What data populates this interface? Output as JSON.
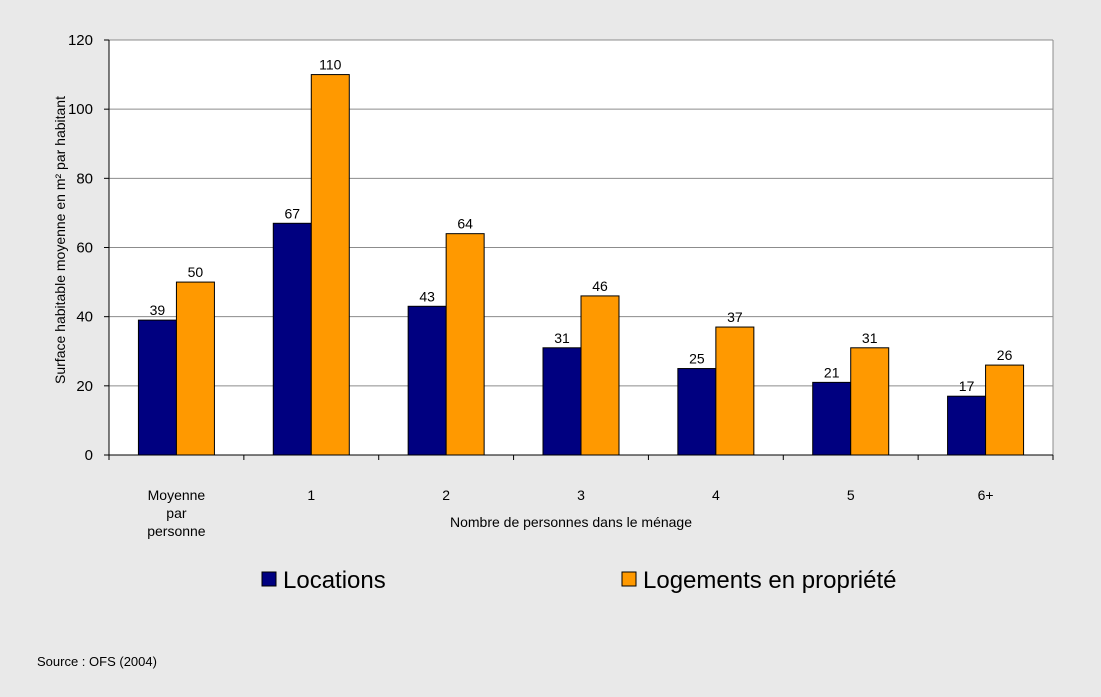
{
  "chart_data": {
    "type": "bar",
    "categories": [
      [
        "Moyenne",
        "par",
        "personne"
      ],
      [
        "1"
      ],
      [
        "2"
      ],
      [
        "3"
      ],
      [
        "4"
      ],
      [
        "5"
      ],
      [
        "6+"
      ]
    ],
    "series": [
      {
        "name": "Locations",
        "values": [
          39,
          67,
          43,
          31,
          25,
          21,
          17
        ],
        "color": "#000080"
      },
      {
        "name": "Logements en propriété",
        "values": [
          50,
          110,
          64,
          46,
          37,
          31,
          26
        ],
        "color": "#ff9900"
      }
    ],
    "xlabel": "Nombre de personnes dans le ménage",
    "ylabel": "Surface habitable moyenne en m² par habitant",
    "ylim": [
      0,
      120
    ],
    "yticks": [
      0,
      20,
      40,
      60,
      80,
      100,
      120
    ],
    "grid": true,
    "legend": "bottom",
    "data_labels": true
  },
  "source": "Source : OFS (2004)"
}
